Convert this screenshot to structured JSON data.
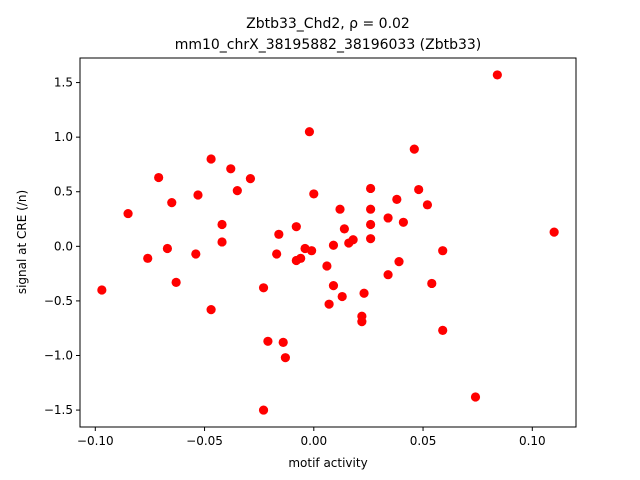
{
  "chart_data": {
    "type": "scatter",
    "title_line1": "Zbtb33_Chd2, ρ = 0.02",
    "title_line2": "mm10_chrX_38195882_38196033 (Zbtb33)",
    "xlabel": "motif activity",
    "ylabel": "signal at CRE (/n)",
    "xlim": [
      -0.107,
      0.12
    ],
    "ylim": [
      -1.655,
      1.725
    ],
    "xticks": [
      -0.1,
      -0.05,
      0.0,
      0.05,
      0.1
    ],
    "xtick_labels": [
      "−0.10",
      "−0.05",
      "0.00",
      "0.05",
      "0.10"
    ],
    "yticks": [
      -1.5,
      -1.0,
      -0.5,
      0.0,
      0.5,
      1.0,
      1.5
    ],
    "ytick_labels": [
      "−1.5",
      "−1.0",
      "−0.5",
      "0.0",
      "0.5",
      "1.0",
      "1.5"
    ],
    "grid": false,
    "marker_color": "#ff0000",
    "points": [
      [
        -0.097,
        -0.4
      ],
      [
        -0.085,
        0.3
      ],
      [
        -0.076,
        -0.11
      ],
      [
        -0.071,
        0.63
      ],
      [
        -0.067,
        -0.02
      ],
      [
        -0.065,
        0.4
      ],
      [
        -0.063,
        -0.33
      ],
      [
        -0.054,
        -0.07
      ],
      [
        -0.053,
        0.47
      ],
      [
        -0.047,
        0.8
      ],
      [
        -0.047,
        -0.58
      ],
      [
        -0.042,
        0.2
      ],
      [
        -0.042,
        0.04
      ],
      [
        -0.038,
        0.71
      ],
      [
        -0.035,
        0.51
      ],
      [
        -0.029,
        0.62
      ],
      [
        -0.023,
        -0.38
      ],
      [
        -0.023,
        -1.5
      ],
      [
        -0.021,
        -0.87
      ],
      [
        -0.017,
        -0.07
      ],
      [
        -0.016,
        0.11
      ],
      [
        -0.014,
        -0.88
      ],
      [
        -0.013,
        -1.02
      ],
      [
        -0.008,
        0.18
      ],
      [
        -0.008,
        -0.13
      ],
      [
        -0.006,
        -0.11
      ],
      [
        -0.004,
        -0.02
      ],
      [
        -0.002,
        1.05
      ],
      [
        -0.001,
        -0.04
      ],
      [
        0.0,
        0.48
      ],
      [
        0.006,
        -0.18
      ],
      [
        0.007,
        -0.53
      ],
      [
        0.009,
        0.01
      ],
      [
        0.009,
        -0.36
      ],
      [
        0.012,
        0.34
      ],
      [
        0.013,
        -0.46
      ],
      [
        0.014,
        0.16
      ],
      [
        0.016,
        0.03
      ],
      [
        0.018,
        0.06
      ],
      [
        0.022,
        -0.64
      ],
      [
        0.022,
        -0.69
      ],
      [
        0.023,
        -0.43
      ],
      [
        0.026,
        0.34
      ],
      [
        0.026,
        0.53
      ],
      [
        0.026,
        0.2
      ],
      [
        0.026,
        0.07
      ],
      [
        0.034,
        0.26
      ],
      [
        0.034,
        -0.26
      ],
      [
        0.038,
        0.43
      ],
      [
        0.039,
        -0.14
      ],
      [
        0.041,
        0.22
      ],
      [
        0.046,
        0.89
      ],
      [
        0.048,
        0.52
      ],
      [
        0.052,
        0.38
      ],
      [
        0.054,
        -0.34
      ],
      [
        0.059,
        -0.77
      ],
      [
        0.059,
        -0.04
      ],
      [
        0.074,
        -1.38
      ],
      [
        0.084,
        1.57
      ],
      [
        0.11,
        0.13
      ]
    ]
  }
}
